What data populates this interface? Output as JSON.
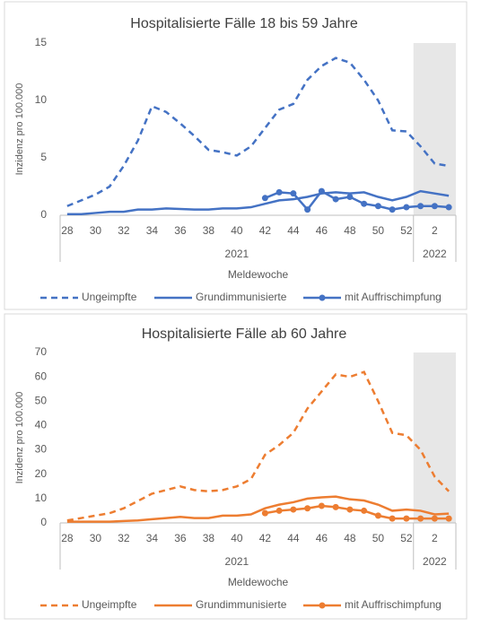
{
  "chart_data": [
    {
      "type": "line",
      "title": "Hospitalisierte Fälle 18 bis 59 Jahre",
      "y_label": "Inzidenz pro 100.000",
      "x_label": "Meldewoche",
      "categories": [
        "28",
        null,
        "30",
        null,
        "32",
        null,
        "34",
        null,
        "36",
        null,
        "38",
        null,
        "40",
        null,
        "42",
        null,
        "44",
        null,
        "46",
        null,
        "48",
        null,
        "50",
        null,
        "52",
        null,
        "2",
        null
      ],
      "groups": [
        {
          "label": "2021",
          "count": 25,
          "shade": false
        },
        {
          "label": "2022",
          "count": 3,
          "shade": true
        }
      ],
      "ylim": [
        0,
        15
      ],
      "yticks": [
        0,
        5,
        10,
        15
      ],
      "grid": false,
      "series": [
        {
          "name": "Ungeimpfte",
          "color": "#4472c4",
          "dash": true,
          "marker": false,
          "values": [
            0.8,
            1.3,
            1.8,
            2.5,
            4.3,
            6.5,
            9.5,
            9.0,
            8.0,
            6.9,
            5.7,
            5.5,
            5.2,
            6.0,
            7.6,
            9.2,
            9.7,
            11.8,
            13.0,
            13.7,
            13.3,
            11.8,
            10.0,
            7.4,
            7.3,
            6.0,
            4.5,
            4.3
          ]
        },
        {
          "name": "Grundimmunisierte",
          "color": "#4472c4",
          "dash": false,
          "marker": false,
          "values": [
            0.1,
            0.1,
            0.2,
            0.3,
            0.3,
            0.5,
            0.5,
            0.6,
            0.55,
            0.5,
            0.5,
            0.6,
            0.6,
            0.7,
            1.0,
            1.3,
            1.4,
            1.6,
            1.9,
            2.0,
            1.9,
            2.0,
            1.6,
            1.3,
            1.6,
            2.1,
            1.9,
            1.7
          ]
        },
        {
          "name": "mit Auffrischimpfung",
          "color": "#4472c4",
          "dash": false,
          "marker": true,
          "values": [
            null,
            null,
            null,
            null,
            null,
            null,
            null,
            null,
            null,
            null,
            null,
            null,
            null,
            null,
            1.5,
            2.0,
            1.9,
            0.5,
            2.1,
            1.4,
            1.6,
            1.0,
            0.8,
            0.5,
            0.7,
            0.8,
            0.8,
            0.7
          ]
        }
      ]
    },
    {
      "type": "line",
      "title": "Hospitalisierte Fälle ab 60 Jahre",
      "y_label": "Inzidenz pro 100.000",
      "x_label": "Meldewoche",
      "categories": [
        "28",
        null,
        "30",
        null,
        "32",
        null,
        "34",
        null,
        "36",
        null,
        "38",
        null,
        "40",
        null,
        "42",
        null,
        "44",
        null,
        "46",
        null,
        "48",
        null,
        "50",
        null,
        "52",
        null,
        "2",
        null
      ],
      "groups": [
        {
          "label": "2021",
          "count": 25,
          "shade": false
        },
        {
          "label": "2022",
          "count": 3,
          "shade": true
        }
      ],
      "ylim": [
        0,
        70
      ],
      "yticks": [
        0,
        10,
        20,
        30,
        40,
        50,
        60,
        70
      ],
      "grid": false,
      "series": [
        {
          "name": "Ungeimpfte",
          "color": "#ed7d31",
          "dash": true,
          "marker": false,
          "values": [
            1,
            2,
            3,
            4,
            6,
            9,
            12,
            13.5,
            15,
            13.5,
            13,
            13.5,
            15,
            18,
            28,
            32,
            37,
            47,
            54,
            61,
            60,
            62,
            50,
            37,
            36,
            30,
            19,
            13
          ]
        },
        {
          "name": "Grundimmunisierte",
          "color": "#ed7d31",
          "dash": false,
          "marker": false,
          "values": [
            0.5,
            0.5,
            0.5,
            0.5,
            0.8,
            1,
            1.5,
            2,
            2.5,
            2,
            2,
            3,
            3,
            3.5,
            6,
            7.5,
            8.5,
            10,
            10.5,
            10.8,
            9.7,
            9.2,
            7.5,
            5,
            5.5,
            5,
            3.5,
            3.8
          ]
        },
        {
          "name": "mit Auffrischimpfung",
          "color": "#ed7d31",
          "dash": false,
          "marker": true,
          "values": [
            null,
            null,
            null,
            null,
            null,
            null,
            null,
            null,
            null,
            null,
            null,
            null,
            null,
            null,
            4,
            5,
            5.5,
            6,
            7,
            6.5,
            5.5,
            5,
            3,
            1.8,
            1.8,
            1.8,
            1.8,
            1.8
          ]
        }
      ]
    }
  ]
}
